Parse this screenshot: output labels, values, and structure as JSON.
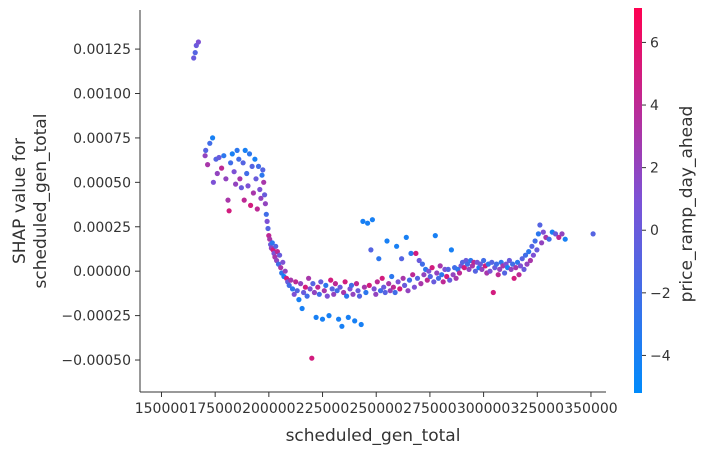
{
  "chart_data": {
    "type": "scatter",
    "xlabel": "scheduled_gen_total",
    "ylabel_lines": [
      "SHAP value for",
      "scheduled_gen_total"
    ],
    "xlim": [
      140000,
      357000
    ],
    "ylim": [
      -0.00068,
      0.00147
    ],
    "x_ticks": [
      {
        "value": 150000,
        "label": "150000"
      },
      {
        "value": 175000,
        "label": "175000"
      },
      {
        "value": 200000,
        "label": "200000"
      },
      {
        "value": 225000,
        "label": "225000"
      },
      {
        "value": 250000,
        "label": "250000"
      },
      {
        "value": 275000,
        "label": "275000"
      },
      {
        "value": 300000,
        "label": "300000"
      },
      {
        "value": 325000,
        "label": "325000"
      },
      {
        "value": 350000,
        "label": "350000"
      }
    ],
    "y_ticks": [
      {
        "value": -0.0005,
        "label": "−0.00050"
      },
      {
        "value": -0.00025,
        "label": "−0.00025"
      },
      {
        "value": 0.0,
        "label": "0.00000"
      },
      {
        "value": 0.00025,
        "label": "0.00025"
      },
      {
        "value": 0.0005,
        "label": "0.00050"
      },
      {
        "value": 0.00075,
        "label": "0.00075"
      },
      {
        "value": 0.001,
        "label": "0.00100"
      },
      {
        "value": 0.00125,
        "label": "0.00125"
      }
    ],
    "colorbar": {
      "label": "price_ramp_day_ahead",
      "range": [
        -5.2,
        7.1
      ],
      "ticks": [
        {
          "value": -4,
          "label": "−4"
        },
        {
          "value": -2,
          "label": "−2"
        },
        {
          "value": 0,
          "label": "0"
        },
        {
          "value": 2,
          "label": "2"
        },
        {
          "value": 4,
          "label": "4"
        },
        {
          "value": 6,
          "label": "6"
        }
      ],
      "colors": [
        "#008bfb",
        "#ff0051"
      ]
    },
    "points": [
      {
        "x": 165000,
        "y": 0.0012,
        "c": 0
      },
      {
        "x": 165700,
        "y": 0.00123,
        "c": -1
      },
      {
        "x": 166200,
        "y": 0.00127,
        "c": 0
      },
      {
        "x": 167200,
        "y": 0.00129,
        "c": 1
      },
      {
        "x": 170300,
        "y": 0.00065,
        "c": 2
      },
      {
        "x": 170600,
        "y": 0.00068,
        "c": -1
      },
      {
        "x": 171500,
        "y": 0.0006,
        "c": 3
      },
      {
        "x": 172500,
        "y": 0.00072,
        "c": -2
      },
      {
        "x": 173800,
        "y": 0.00075,
        "c": -4
      },
      {
        "x": 174200,
        "y": 0.0005,
        "c": 1
      },
      {
        "x": 175400,
        "y": 0.00063,
        "c": -1
      },
      {
        "x": 176000,
        "y": 0.00055,
        "c": 2
      },
      {
        "x": 176800,
        "y": 0.00064,
        "c": 0
      },
      {
        "x": 178000,
        "y": 0.00058,
        "c": 4
      },
      {
        "x": 179000,
        "y": 0.00065,
        "c": -3
      },
      {
        "x": 180000,
        "y": 0.00052,
        "c": 2
      },
      {
        "x": 181000,
        "y": 0.0004,
        "c": 3
      },
      {
        "x": 181500,
        "y": 0.00034,
        "c": 5
      },
      {
        "x": 182200,
        "y": 0.00061,
        "c": -2
      },
      {
        "x": 183000,
        "y": 0.00066,
        "c": -4
      },
      {
        "x": 183800,
        "y": 0.00056,
        "c": 1
      },
      {
        "x": 184500,
        "y": 0.00049,
        "c": 2
      },
      {
        "x": 185200,
        "y": 0.00068,
        "c": -3
      },
      {
        "x": 186000,
        "y": 0.00063,
        "c": -2
      },
      {
        "x": 186500,
        "y": 0.00052,
        "c": 3
      },
      {
        "x": 187200,
        "y": 0.00047,
        "c": 0
      },
      {
        "x": 188000,
        "y": 0.00061,
        "c": -1
      },
      {
        "x": 188500,
        "y": 0.0004,
        "c": 4
      },
      {
        "x": 189000,
        "y": 0.00068,
        "c": -4
      },
      {
        "x": 189700,
        "y": 0.00055,
        "c": -2
      },
      {
        "x": 190300,
        "y": 0.00048,
        "c": 1
      },
      {
        "x": 191000,
        "y": 0.00066,
        "c": -3
      },
      {
        "x": 191500,
        "y": 0.00037,
        "c": 5
      },
      {
        "x": 192200,
        "y": 0.00059,
        "c": -1
      },
      {
        "x": 192800,
        "y": 0.00044,
        "c": 3
      },
      {
        "x": 193500,
        "y": 0.00063,
        "c": -4
      },
      {
        "x": 194000,
        "y": 0.00052,
        "c": 0
      },
      {
        "x": 194600,
        "y": 0.00035,
        "c": 4
      },
      {
        "x": 195200,
        "y": 0.00059,
        "c": -2
      },
      {
        "x": 195800,
        "y": 0.00046,
        "c": 1
      },
      {
        "x": 196300,
        "y": 0.00041,
        "c": 2
      },
      {
        "x": 196800,
        "y": 0.00054,
        "c": -3
      },
      {
        "x": 197200,
        "y": 0.00057,
        "c": -1
      },
      {
        "x": 197600,
        "y": 0.0005,
        "c": 3
      },
      {
        "x": 198000,
        "y": 0.00043,
        "c": 0
      },
      {
        "x": 198400,
        "y": 0.00038,
        "c": 2
      },
      {
        "x": 198800,
        "y": 0.00032,
        "c": -2
      },
      {
        "x": 199200,
        "y": 0.00028,
        "c": 1
      },
      {
        "x": 199600,
        "y": 0.00024,
        "c": -1
      },
      {
        "x": 200000,
        "y": 0.0002,
        "c": 4
      },
      {
        "x": 200400,
        "y": 0.00018,
        "c": 3
      },
      {
        "x": 200800,
        "y": 0.00015,
        "c": 0
      },
      {
        "x": 201200,
        "y": 0.00013,
        "c": 2
      },
      {
        "x": 201600,
        "y": 0.00016,
        "c": -3
      },
      {
        "x": 202000,
        "y": 0.00012,
        "c": 5
      },
      {
        "x": 202400,
        "y": 0.0001,
        "c": 1
      },
      {
        "x": 202800,
        "y": 8e-05,
        "c": 3
      },
      {
        "x": 203200,
        "y": 0.00014,
        "c": -1
      },
      {
        "x": 203600,
        "y": 6e-05,
        "c": 2
      },
      {
        "x": 204000,
        "y": 0.00011,
        "c": 4
      },
      {
        "x": 204500,
        "y": 4e-05,
        "c": -2
      },
      {
        "x": 205000,
        "y": 9e-05,
        "c": 0
      },
      {
        "x": 205500,
        "y": 2e-05,
        "c": 3
      },
      {
        "x": 206000,
        "y": -1e-05,
        "c": -3
      },
      {
        "x": 206500,
        "y": 5e-05,
        "c": 1
      },
      {
        "x": 207000,
        "y": -3e-05,
        "c": -4
      },
      {
        "x": 207600,
        "y": 0.0,
        "c": 2
      },
      {
        "x": 208200,
        "y": -4e-05,
        "c": 5
      },
      {
        "x": 208800,
        "y": -6e-05,
        "c": 0
      },
      {
        "x": 209500,
        "y": -8e-05,
        "c": -2
      },
      {
        "x": 210200,
        "y": -5e-05,
        "c": 3
      },
      {
        "x": 211000,
        "y": -0.0001,
        "c": -3
      },
      {
        "x": 211800,
        "y": -0.00013,
        "c": 1
      },
      {
        "x": 212500,
        "y": -6e-05,
        "c": 4
      },
      {
        "x": 213200,
        "y": -0.00011,
        "c": -1
      },
      {
        "x": 214000,
        "y": -0.00016,
        "c": -4
      },
      {
        "x": 214800,
        "y": -7e-05,
        "c": 2
      },
      {
        "x": 215500,
        "y": -0.00021,
        "c": -4
      },
      {
        "x": 216200,
        "y": -0.00012,
        "c": 0
      },
      {
        "x": 217000,
        "y": -9e-05,
        "c": 5
      },
      {
        "x": 217800,
        "y": -0.00014,
        "c": -2
      },
      {
        "x": 218500,
        "y": -4e-05,
        "c": 3
      },
      {
        "x": 219200,
        "y": -0.0001,
        "c": 1
      },
      {
        "x": 220000,
        "y": -0.00049,
        "c": 5
      },
      {
        "x": 220500,
        "y": -7e-05,
        "c": -1
      },
      {
        "x": 221200,
        "y": -0.00012,
        "c": 2
      },
      {
        "x": 222000,
        "y": -0.00026,
        "c": -4
      },
      {
        "x": 222800,
        "y": -9e-05,
        "c": 4
      },
      {
        "x": 223500,
        "y": -0.00013,
        "c": -2
      },
      {
        "x": 224200,
        "y": -6e-05,
        "c": 0
      },
      {
        "x": 225000,
        "y": -0.00027,
        "c": -4
      },
      {
        "x": 225800,
        "y": -0.00011,
        "c": 3
      },
      {
        "x": 226500,
        "y": -8e-05,
        "c": -3
      },
      {
        "x": 227200,
        "y": -0.00014,
        "c": 1
      },
      {
        "x": 228000,
        "y": -0.00025,
        "c": -4
      },
      {
        "x": 228800,
        "y": -5e-05,
        "c": 5
      },
      {
        "x": 229500,
        "y": -0.0001,
        "c": -1
      },
      {
        "x": 230200,
        "y": -0.00013,
        "c": 2
      },
      {
        "x": 231000,
        "y": -7e-05,
        "c": 4
      },
      {
        "x": 231800,
        "y": -0.00011,
        "c": -2
      },
      {
        "x": 232500,
        "y": -0.00027,
        "c": -4
      },
      {
        "x": 233200,
        "y": -9e-05,
        "c": 0
      },
      {
        "x": 234000,
        "y": -0.00031,
        "c": -4
      },
      {
        "x": 234800,
        "y": -0.00012,
        "c": 3
      },
      {
        "x": 235500,
        "y": -6e-05,
        "c": 5
      },
      {
        "x": 236200,
        "y": -0.00014,
        "c": -3
      },
      {
        "x": 237000,
        "y": -0.00026,
        "c": -4
      },
      {
        "x": 237800,
        "y": -0.0001,
        "c": 1
      },
      {
        "x": 238500,
        "y": -8e-05,
        "c": -2
      },
      {
        "x": 239200,
        "y": -0.00013,
        "c": 2
      },
      {
        "x": 240000,
        "y": -0.00028,
        "c": -4
      },
      {
        "x": 240800,
        "y": -7e-05,
        "c": 4
      },
      {
        "x": 241500,
        "y": -0.00011,
        "c": 0
      },
      {
        "x": 242200,
        "y": -0.00014,
        "c": -1
      },
      {
        "x": 243000,
        "y": -0.0003,
        "c": -4
      },
      {
        "x": 243800,
        "y": 0.00028,
        "c": -4
      },
      {
        "x": 244500,
        "y": -9e-05,
        "c": 3
      },
      {
        "x": 245200,
        "y": -0.00012,
        "c": -3
      },
      {
        "x": 246000,
        "y": 0.00027,
        "c": -4
      },
      {
        "x": 246800,
        "y": -8e-05,
        "c": 5
      },
      {
        "x": 247500,
        "y": 0.00012,
        "c": -1
      },
      {
        "x": 248200,
        "y": 0.00029,
        "c": -4
      },
      {
        "x": 249000,
        "y": -0.0001,
        "c": 1
      },
      {
        "x": 249800,
        "y": -0.00013,
        "c": 2
      },
      {
        "x": 250500,
        "y": -6e-05,
        "c": 4
      },
      {
        "x": 251200,
        "y": 7e-05,
        "c": -3
      },
      {
        "x": 252000,
        "y": -0.00011,
        "c": -2
      },
      {
        "x": 252800,
        "y": -4e-05,
        "c": 5
      },
      {
        "x": 253500,
        "y": -9e-05,
        "c": 0
      },
      {
        "x": 254200,
        "y": -0.00012,
        "c": -1
      },
      {
        "x": 255000,
        "y": 0.00017,
        "c": -4
      },
      {
        "x": 255800,
        "y": -7e-05,
        "c": 3
      },
      {
        "x": 256500,
        "y": -0.00011,
        "c": 2
      },
      {
        "x": 257200,
        "y": -3e-05,
        "c": -3
      },
      {
        "x": 258000,
        "y": -9e-05,
        "c": 4
      },
      {
        "x": 258800,
        "y": -0.00012,
        "c": -2
      },
      {
        "x": 259500,
        "y": 0.00014,
        "c": -4
      },
      {
        "x": 260200,
        "y": -6e-05,
        "c": 1
      },
      {
        "x": 261000,
        "y": -0.0001,
        "c": 5
      },
      {
        "x": 261800,
        "y": 7e-05,
        "c": -1
      },
      {
        "x": 262500,
        "y": -4e-05,
        "c": 3
      },
      {
        "x": 263200,
        "y": -8e-05,
        "c": 0
      },
      {
        "x": 264000,
        "y": 0.00019,
        "c": -4
      },
      {
        "x": 264800,
        "y": -0.00011,
        "c": 2
      },
      {
        "x": 265500,
        "y": -5e-05,
        "c": -2
      },
      {
        "x": 266200,
        "y": 0.0001,
        "c": -3
      },
      {
        "x": 267000,
        "y": -2e-05,
        "c": 4
      },
      {
        "x": 267800,
        "y": -9e-05,
        "c": 1
      },
      {
        "x": 268500,
        "y": 0.0001,
        "c": 5
      },
      {
        "x": 269200,
        "y": -4e-05,
        "c": -1
      },
      {
        "x": 270000,
        "y": 6e-05,
        "c": 0
      },
      {
        "x": 270800,
        "y": -7e-05,
        "c": 3
      },
      {
        "x": 271500,
        "y": 4e-05,
        "c": -2
      },
      {
        "x": 272200,
        "y": -2e-05,
        "c": 2
      },
      {
        "x": 273000,
        "y": 1e-05,
        "c": -3
      },
      {
        "x": 273800,
        "y": -5e-05,
        "c": 4
      },
      {
        "x": 274500,
        "y": 0.0,
        "c": 1
      },
      {
        "x": 275200,
        "y": -3e-05,
        "c": -1
      },
      {
        "x": 276000,
        "y": 2e-05,
        "c": 5
      },
      {
        "x": 276800,
        "y": -6e-05,
        "c": 0
      },
      {
        "x": 277500,
        "y": 0.0002,
        "c": -4
      },
      {
        "x": 278200,
        "y": -1e-05,
        "c": 2
      },
      {
        "x": 279000,
        "y": -4e-05,
        "c": -2
      },
      {
        "x": 279800,
        "y": 3e-05,
        "c": 3
      },
      {
        "x": 280500,
        "y": -2e-05,
        "c": -3
      },
      {
        "x": 281200,
        "y": -6e-05,
        "c": 4
      },
      {
        "x": 282000,
        "y": 1e-05,
        "c": 1
      },
      {
        "x": 282800,
        "y": -3e-05,
        "c": 5
      },
      {
        "x": 283500,
        "y": 1e-05,
        "c": -1
      },
      {
        "x": 284200,
        "y": -5e-05,
        "c": 0
      },
      {
        "x": 285000,
        "y": 0.00012,
        "c": -4
      },
      {
        "x": 285800,
        "y": -2e-05,
        "c": 2
      },
      {
        "x": 286500,
        "y": 2e-05,
        "c": -2
      },
      {
        "x": 287200,
        "y": -4e-05,
        "c": 3
      },
      {
        "x": 288000,
        "y": 1e-05,
        "c": -3
      },
      {
        "x": 288800,
        "y": -1e-05,
        "c": 4
      },
      {
        "x": 289500,
        "y": 3e-05,
        "c": 1
      },
      {
        "x": 290200,
        "y": 5e-05,
        "c": -1
      },
      {
        "x": 291000,
        "y": 2e-05,
        "c": 5
      },
      {
        "x": 291800,
        "y": 6e-05,
        "c": 0
      },
      {
        "x": 292500,
        "y": 4e-05,
        "c": -2
      },
      {
        "x": 293200,
        "y": 1e-05,
        "c": 2
      },
      {
        "x": 294000,
        "y": 6e-05,
        "c": -3
      },
      {
        "x": 294800,
        "y": 3e-05,
        "c": 3
      },
      {
        "x": 295500,
        "y": 5e-05,
        "c": 4
      },
      {
        "x": 296200,
        "y": 0.0,
        "c": -1
      },
      {
        "x": 297000,
        "y": 5e-05,
        "c": 1
      },
      {
        "x": 297800,
        "y": 2e-05,
        "c": -4
      },
      {
        "x": 298500,
        "y": 4e-05,
        "c": 0
      },
      {
        "x": 299200,
        "y": 1e-05,
        "c": 2
      },
      {
        "x": 300000,
        "y": 6e-05,
        "c": -2
      },
      {
        "x": 300800,
        "y": 3e-05,
        "c": 5
      },
      {
        "x": 301500,
        "y": -1e-05,
        "c": 3
      },
      {
        "x": 302200,
        "y": 4e-05,
        "c": -3
      },
      {
        "x": 303000,
        "y": 0.0,
        "c": 1
      },
      {
        "x": 303800,
        "y": 5e-05,
        "c": -1
      },
      {
        "x": 304500,
        "y": -0.00012,
        "c": 5
      },
      {
        "x": 305200,
        "y": 2e-05,
        "c": 0
      },
      {
        "x": 306000,
        "y": 4e-05,
        "c": -2
      },
      {
        "x": 306800,
        "y": -2e-05,
        "c": 4
      },
      {
        "x": 307500,
        "y": 1e-05,
        "c": 2
      },
      {
        "x": 308200,
        "y": 5e-05,
        "c": -3
      },
      {
        "x": 309000,
        "y": 3e-05,
        "c": 3
      },
      {
        "x": 309800,
        "y": -1e-05,
        "c": -1
      },
      {
        "x": 310500,
        "y": 4e-05,
        "c": 1
      },
      {
        "x": 311200,
        "y": 2e-05,
        "c": -4
      },
      {
        "x": 312000,
        "y": 6e-05,
        "c": 0
      },
      {
        "x": 312800,
        "y": 1e-05,
        "c": 2
      },
      {
        "x": 313500,
        "y": 4e-05,
        "c": -2
      },
      {
        "x": 314200,
        "y": -4e-05,
        "c": 5
      },
      {
        "x": 315000,
        "y": 2e-05,
        "c": 3
      },
      {
        "x": 315800,
        "y": 5e-05,
        "c": -3
      },
      {
        "x": 316500,
        "y": -2e-05,
        "c": 4
      },
      {
        "x": 317200,
        "y": 3e-05,
        "c": 1
      },
      {
        "x": 318000,
        "y": 7e-05,
        "c": -1
      },
      {
        "x": 318800,
        "y": 1e-05,
        "c": 0
      },
      {
        "x": 319500,
        "y": 9e-05,
        "c": -2
      },
      {
        "x": 320200,
        "y": 4e-05,
        "c": 2
      },
      {
        "x": 321000,
        "y": 0.00011,
        "c": -3
      },
      {
        "x": 321800,
        "y": 6e-05,
        "c": 3
      },
      {
        "x": 322500,
        "y": 0.00014,
        "c": -1
      },
      {
        "x": 323200,
        "y": 9e-05,
        "c": 1
      },
      {
        "x": 324000,
        "y": 0.00017,
        "c": -2
      },
      {
        "x": 324800,
        "y": 0.00012,
        "c": 0
      },
      {
        "x": 325500,
        "y": 0.00021,
        "c": -3
      },
      {
        "x": 326200,
        "y": 0.00026,
        "c": -1
      },
      {
        "x": 327000,
        "y": 0.00016,
        "c": 2
      },
      {
        "x": 327800,
        "y": 0.00022,
        "c": 1
      },
      {
        "x": 329000,
        "y": 0.00019,
        "c": 3
      },
      {
        "x": 330500,
        "y": 0.00018,
        "c": -2
      },
      {
        "x": 332000,
        "y": 0.00022,
        "c": -4
      },
      {
        "x": 333500,
        "y": 0.00021,
        "c": 0
      },
      {
        "x": 335000,
        "y": 0.00019,
        "c": 4
      },
      {
        "x": 336500,
        "y": 0.00021,
        "c": 2
      },
      {
        "x": 338000,
        "y": 0.00018,
        "c": -4
      },
      {
        "x": 351000,
        "y": 0.00021,
        "c": -1
      }
    ]
  }
}
